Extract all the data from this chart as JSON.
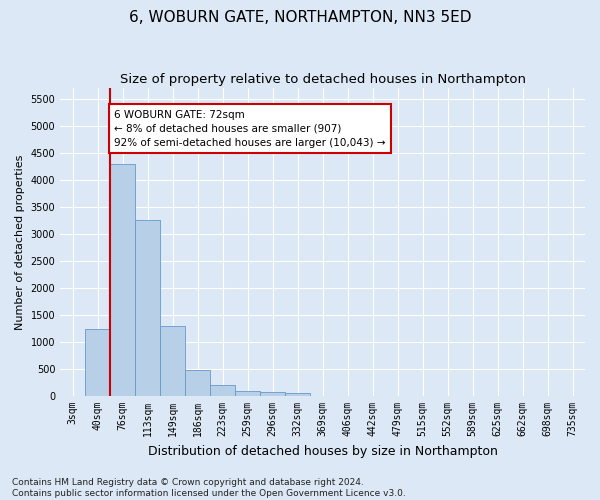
{
  "title_line1": "6, WOBURN GATE, NORTHAMPTON, NN3 5ED",
  "title_line2": "Size of property relative to detached houses in Northampton",
  "xlabel": "Distribution of detached houses by size in Northampton",
  "ylabel": "Number of detached properties",
  "categories": [
    "3sqm",
    "40sqm",
    "76sqm",
    "113sqm",
    "149sqm",
    "186sqm",
    "223sqm",
    "259sqm",
    "296sqm",
    "332sqm",
    "369sqm",
    "406sqm",
    "442sqm",
    "479sqm",
    "515sqm",
    "552sqm",
    "589sqm",
    "625sqm",
    "662sqm",
    "698sqm",
    "735sqm"
  ],
  "values": [
    0,
    1250,
    4300,
    3250,
    1300,
    480,
    200,
    100,
    70,
    50,
    0,
    0,
    0,
    0,
    0,
    0,
    0,
    0,
    0,
    0,
    0
  ],
  "bar_color": "#b8cfe8",
  "bar_edge_color": "#6699cc",
  "annotation_box_text": "6 WOBURN GATE: 72sqm\n← 8% of detached houses are smaller (907)\n92% of semi-detached houses are larger (10,043) →",
  "annotation_line_color": "#cc0000",
  "annotation_box_edge_color": "#cc0000",
  "vline_x_index": 1.5,
  "ylim": [
    0,
    5700
  ],
  "yticks": [
    0,
    500,
    1000,
    1500,
    2000,
    2500,
    3000,
    3500,
    4000,
    4500,
    5000,
    5500
  ],
  "footnote": "Contains HM Land Registry data © Crown copyright and database right 2024.\nContains public sector information licensed under the Open Government Licence v3.0.",
  "plot_bg_color": "#dce8f5",
  "fig_bg_color": "#dce8f5",
  "grid_color": "#ffffff",
  "title1_fontsize": 11,
  "title2_fontsize": 9.5,
  "xlabel_fontsize": 9,
  "ylabel_fontsize": 8,
  "tick_fontsize": 7,
  "footnote_fontsize": 6.5,
  "ann_fontsize": 7.5
}
